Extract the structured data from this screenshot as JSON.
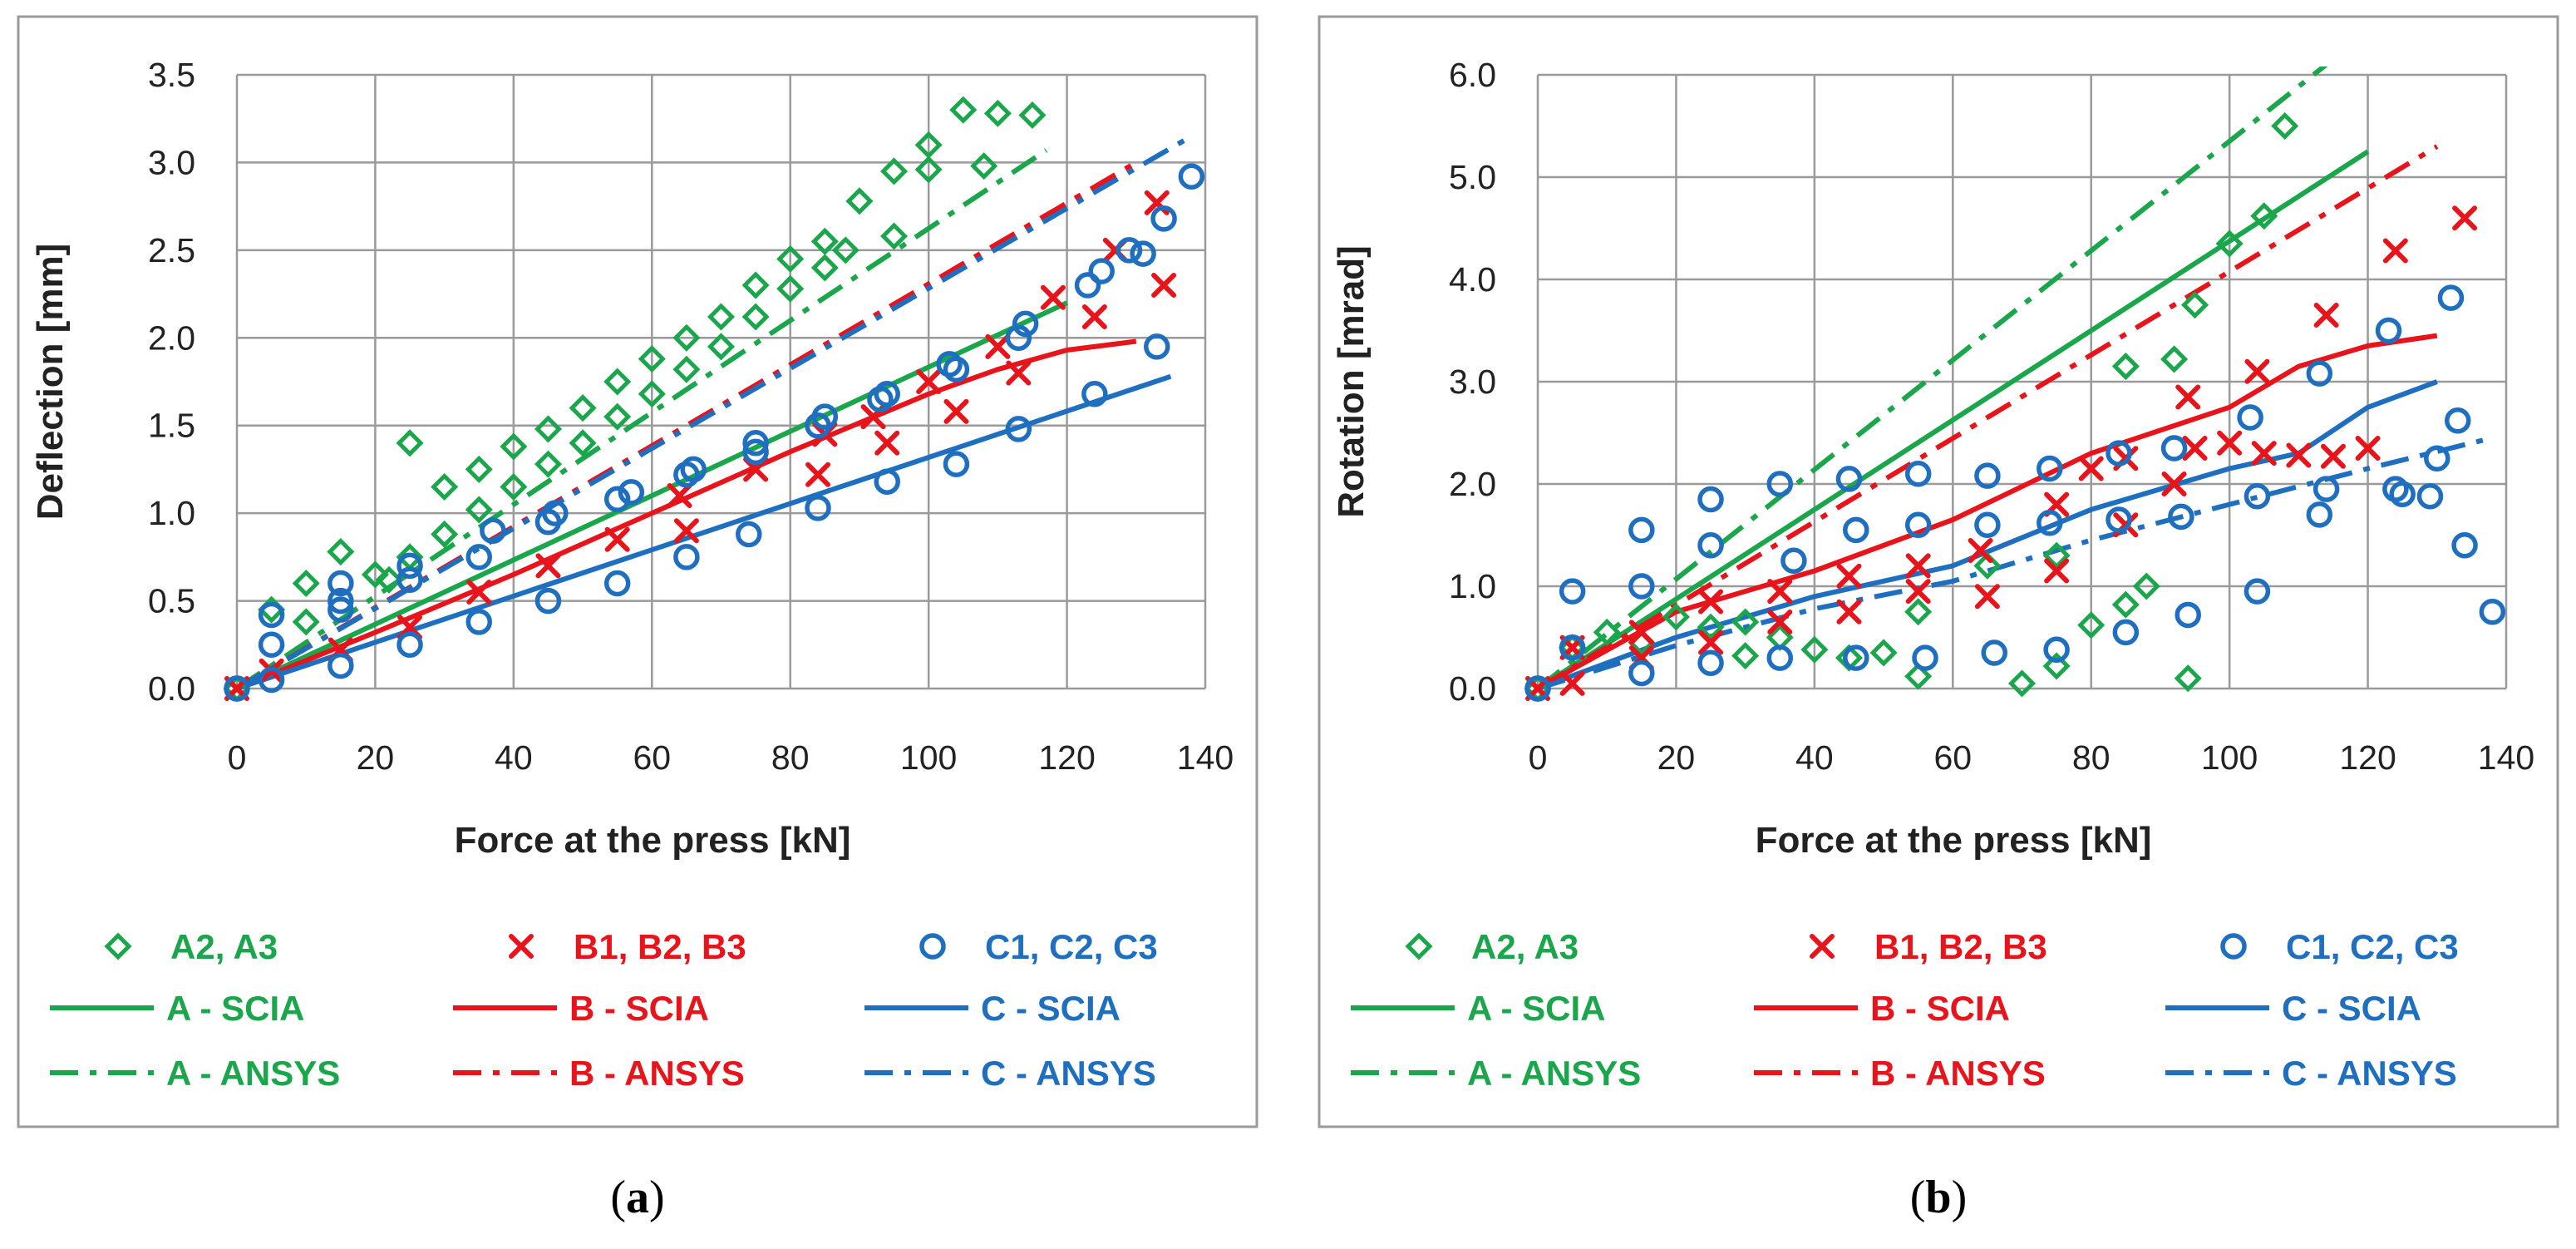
{
  "colors": {
    "A": "#1aa64a",
    "B": "#e8141b",
    "C": "#1f6fc0"
  },
  "legend_labels": {
    "A_exp": "A2, A3",
    "B_exp": "B1, B2, B3",
    "C_exp": "C1, C2, C3",
    "A_scia": "A - SCIA",
    "B_scia": "B - SCIA",
    "C_scia": "C - SCIA",
    "A_ansys": "A - ANSYS",
    "B_ansys": "B - ANSYS",
    "C_ansys": "C - ANSYS"
  },
  "chart_data": [
    {
      "type": "scatter",
      "caption_letter": "a",
      "xlabel": "Force at the press  [kN]",
      "ylabel": "Deflection [mm]",
      "xlim": [
        0,
        140
      ],
      "ylim": [
        0,
        3.5
      ],
      "xticks": [
        0,
        20,
        40,
        60,
        80,
        100,
        120,
        140
      ],
      "yticks": [
        "0.0",
        "0.5",
        "1.0",
        "1.5",
        "2.0",
        "2.5",
        "3.0",
        "3.5"
      ],
      "ytick_values": [
        0,
        0.5,
        1,
        1.5,
        2,
        2.5,
        3,
        3.5
      ],
      "grid": true,
      "series": [
        {
          "name": "A2, A3",
          "group": "A",
          "kind": "scatter",
          "marker": "diamond",
          "x": [
            0,
            5,
            10,
            10,
            15,
            20,
            22,
            25,
            25,
            30,
            30,
            35,
            35,
            40,
            40,
            45,
            45,
            50,
            50,
            55,
            55,
            60,
            60,
            65,
            65,
            70,
            70,
            75,
            75,
            80,
            80,
            85,
            85,
            88,
            90,
            95,
            95,
            100,
            100,
            105,
            108,
            110,
            115
          ],
          "y": [
            0,
            0.45,
            0.38,
            0.6,
            0.78,
            0.65,
            0.62,
            1.4,
            0.75,
            1.15,
            0.88,
            1.25,
            1.02,
            1.38,
            1.15,
            1.48,
            1.28,
            1.6,
            1.4,
            1.75,
            1.55,
            1.88,
            1.68,
            2.0,
            1.82,
            2.12,
            1.95,
            2.3,
            2.12,
            2.45,
            2.28,
            2.55,
            2.4,
            2.5,
            2.78,
            2.95,
            2.58,
            3.1,
            2.96,
            3.3,
            2.98,
            3.28,
            3.27
          ]
        },
        {
          "name": "B1, B2, B3",
          "group": "B",
          "kind": "scatter",
          "marker": "x",
          "x": [
            0,
            5,
            15,
            25,
            35,
            45,
            55,
            64,
            65,
            75,
            84,
            85,
            92,
            94,
            100,
            104,
            110,
            113,
            118,
            124,
            127,
            133,
            134
          ],
          "y": [
            0,
            0.1,
            0.22,
            0.35,
            0.55,
            0.7,
            0.85,
            1.1,
            0.9,
            1.25,
            1.22,
            1.45,
            1.55,
            1.4,
            1.75,
            1.58,
            1.95,
            1.8,
            2.23,
            2.12,
            2.5,
            2.77,
            2.3
          ]
        },
        {
          "name": "C1, C2, C3",
          "group": "C",
          "kind": "scatter",
          "marker": "circle",
          "x": [
            0,
            5,
            5,
            5,
            15,
            15,
            15,
            15,
            25,
            25,
            25,
            35,
            35,
            37,
            45,
            45,
            46,
            55,
            55,
            57,
            65,
            65,
            66,
            74,
            75,
            75,
            84,
            84,
            85,
            93,
            94,
            94,
            103,
            104,
            104,
            113,
            113,
            114,
            123,
            124,
            125,
            129,
            131,
            133,
            134,
            138
          ],
          "y": [
            0,
            0.25,
            0.42,
            0.05,
            0.6,
            0.45,
            0.13,
            0.5,
            0.25,
            0.62,
            0.7,
            0.38,
            0.75,
            0.9,
            0.5,
            0.95,
            1.0,
            0.6,
            1.08,
            1.12,
            0.75,
            1.22,
            1.25,
            0.88,
            1.35,
            1.4,
            1.03,
            1.5,
            1.55,
            1.65,
            1.18,
            1.68,
            1.85,
            1.28,
            1.82,
            1.48,
            2.0,
            2.08,
            2.3,
            1.68,
            2.38,
            2.5,
            2.48,
            1.95,
            2.68,
            2.92
          ]
        },
        {
          "name": "A - SCIA",
          "group": "A",
          "kind": "line",
          "dash": "solid",
          "x": [
            0,
            120
          ],
          "y": [
            0,
            2.2
          ]
        },
        {
          "name": "B - SCIA",
          "group": "B",
          "kind": "line",
          "dash": "solid",
          "x": [
            0,
            20,
            40,
            60,
            80,
            100,
            110,
            120,
            130
          ],
          "y": [
            0,
            0.32,
            0.65,
            1.0,
            1.35,
            1.68,
            1.82,
            1.93,
            1.98
          ]
        },
        {
          "name": "C - SCIA",
          "group": "C",
          "kind": "line",
          "dash": "solid",
          "x": [
            0,
            135
          ],
          "y": [
            0,
            1.78
          ]
        },
        {
          "name": "A - ANSYS",
          "group": "A",
          "kind": "line",
          "dash": "dashdot",
          "x": [
            0,
            117
          ],
          "y": [
            0,
            3.07
          ]
        },
        {
          "name": "B - ANSYS",
          "group": "B",
          "kind": "line",
          "dash": "dashdot",
          "x": [
            0,
            130
          ],
          "y": [
            0,
            3.0
          ]
        },
        {
          "name": "C - ANSYS",
          "group": "C",
          "kind": "line",
          "dash": "dashdot",
          "x": [
            0,
            138
          ],
          "y": [
            0,
            3.15
          ]
        }
      ]
    },
    {
      "type": "scatter",
      "caption_letter": "b",
      "xlabel": "Force at the press  [kN]",
      "ylabel": "Rotation  [mrad]",
      "xlim": [
        0,
        140
      ],
      "ylim": [
        0,
        6
      ],
      "xticks": [
        0,
        20,
        40,
        60,
        80,
        100,
        120,
        140
      ],
      "yticks": [
        "0.0",
        "1.0",
        "2.0",
        "3.0",
        "4.0",
        "5.0",
        "6.0"
      ],
      "ytick_values": [
        0,
        1,
        2,
        3,
        4,
        5,
        6
      ],
      "grid": true,
      "series": [
        {
          "name": "A2, A3",
          "group": "A",
          "kind": "scatter",
          "marker": "diamond",
          "x": [
            0,
            5,
            10,
            15,
            20,
            25,
            30,
            30,
            35,
            40,
            45,
            50,
            55,
            55,
            65,
            70,
            75,
            75,
            80,
            85,
            85,
            88,
            92,
            94,
            95,
            100,
            105,
            108
          ],
          "y": [
            0,
            0.4,
            0.55,
            0.45,
            0.7,
            0.6,
            0.65,
            0.32,
            0.5,
            0.38,
            0.3,
            0.35,
            0.12,
            0.75,
            1.2,
            0.05,
            0.22,
            1.3,
            0.62,
            0.82,
            3.15,
            1.0,
            3.22,
            0.1,
            3.75,
            4.35,
            4.62,
            5.5
          ]
        },
        {
          "name": "B1, B2, B3",
          "group": "B",
          "kind": "scatter",
          "marker": "x",
          "x": [
            0,
            5,
            5,
            15,
            15,
            25,
            25,
            35,
            35,
            45,
            45,
            55,
            55,
            64,
            65,
            75,
            75,
            80,
            85,
            85,
            92,
            94,
            95,
            100,
            104,
            105,
            110,
            114,
            115,
            120,
            124,
            134
          ],
          "y": [
            0,
            0.05,
            0.4,
            0.55,
            0.3,
            0.85,
            0.45,
            0.95,
            0.65,
            1.1,
            0.75,
            1.2,
            0.95,
            1.35,
            0.9,
            1.8,
            1.15,
            2.15,
            2.25,
            1.6,
            2.0,
            2.85,
            2.35,
            2.4,
            3.1,
            2.3,
            2.28,
            3.65,
            2.27,
            2.35,
            4.28,
            4.6
          ]
        },
        {
          "name": "C1, C2, C3",
          "group": "C",
          "kind": "scatter",
          "marker": "circle",
          "x": [
            0,
            5,
            5,
            15,
            15,
            15,
            25,
            25,
            25,
            35,
            35,
            37,
            45,
            46,
            46,
            55,
            55,
            56,
            65,
            65,
            66,
            74,
            74,
            75,
            84,
            84,
            85,
            92,
            93,
            94,
            103,
            104,
            104,
            113,
            113,
            114,
            123,
            124,
            125,
            129,
            130,
            132,
            133,
            134,
            138
          ],
          "y": [
            0,
            0.95,
            0.4,
            1.55,
            1.0,
            0.15,
            1.85,
            1.4,
            0.25,
            2.0,
            0.3,
            1.25,
            2.05,
            1.55,
            0.3,
            2.1,
            1.6,
            0.3,
            2.08,
            1.6,
            0.35,
            2.15,
            1.62,
            0.38,
            2.3,
            1.65,
            0.55,
            2.35,
            1.68,
            0.72,
            2.65,
            1.88,
            0.95,
            3.08,
            1.7,
            1.95,
            3.5,
            1.95,
            1.9,
            1.88,
            2.25,
            3.82,
            2.62,
            1.4,
            0.75
          ]
        },
        {
          "name": "A - SCIA",
          "group": "A",
          "kind": "line",
          "dash": "solid",
          "x": [
            0,
            120
          ],
          "y": [
            0,
            5.25
          ]
        },
        {
          "name": "B - SCIA",
          "group": "B",
          "kind": "line",
          "dash": "solid",
          "x": [
            0,
            20,
            40,
            60,
            80,
            100,
            110,
            120,
            130
          ],
          "y": [
            0,
            0.75,
            1.15,
            1.65,
            2.3,
            2.75,
            3.15,
            3.35,
            3.45
          ]
        },
        {
          "name": "C - SCIA",
          "group": "C",
          "kind": "line",
          "dash": "solid",
          "x": [
            0,
            20,
            40,
            60,
            80,
            100,
            110,
            120,
            130
          ],
          "y": [
            0,
            0.5,
            0.9,
            1.2,
            1.75,
            2.15,
            2.3,
            2.75,
            3.0
          ]
        },
        {
          "name": "A - ANSYS",
          "group": "A",
          "kind": "line",
          "dash": "dashdot",
          "x": [
            0,
            114
          ],
          "y": [
            0,
            6.1
          ]
        },
        {
          "name": "B - ANSYS",
          "group": "B",
          "kind": "line",
          "dash": "dashdot",
          "x": [
            0,
            130
          ],
          "y": [
            0,
            5.3
          ]
        },
        {
          "name": "C - ANSYS",
          "group": "C",
          "kind": "line",
          "dash": "dashdot",
          "x": [
            0,
            20,
            40,
            60,
            80,
            100,
            120,
            138
          ],
          "y": [
            0,
            0.42,
            0.78,
            1.05,
            1.45,
            1.8,
            2.15,
            2.45
          ]
        }
      ]
    }
  ]
}
